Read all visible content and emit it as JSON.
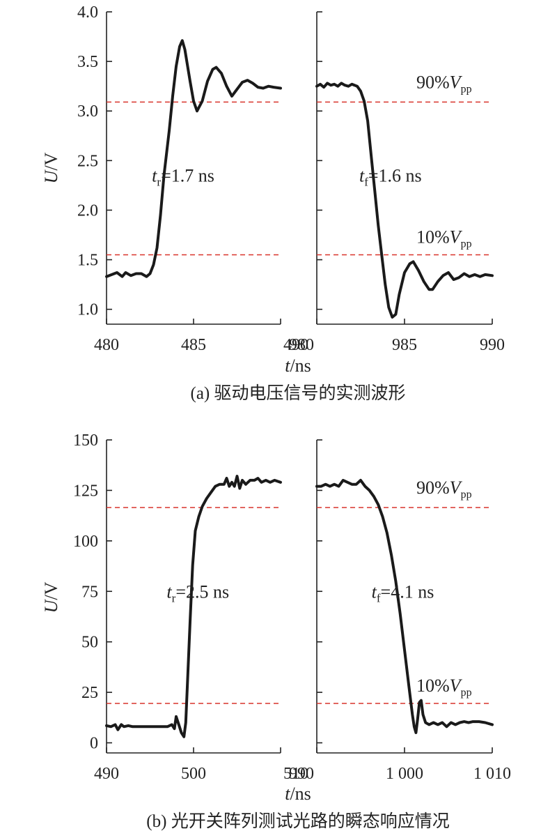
{
  "chart_data": [
    {
      "type": "line",
      "caption": "(a) 驱动电压信号的实测波形",
      "ylabel_italic": "U",
      "ylabel_unit": "/V",
      "xlabel_italic": "t",
      "xlabel_unit": "/ns",
      "ylim": [
        0.85,
        4.0
      ],
      "yticks": [
        "1.0",
        "1.5",
        "2.0",
        "2.5",
        "3.0",
        "3.5",
        "4.0"
      ],
      "ytick_values": [
        1.0,
        1.5,
        2.0,
        2.5,
        3.0,
        3.5,
        4.0
      ],
      "ref_lines": [
        {
          "value": 3.09,
          "label_pre": "90%",
          "label_V": "V",
          "label_sub": "pp"
        },
        {
          "value": 1.55,
          "label_pre": "10%",
          "label_V": "V",
          "label_sub": "pp"
        }
      ],
      "panels": [
        {
          "xlim": [
            480,
            490
          ],
          "xticks": [
            "480",
            "485",
            "490"
          ],
          "xtick_values": [
            480,
            485,
            490
          ],
          "annotation": {
            "sym": "t",
            "sub": "r",
            "text": "=1.7 ns",
            "x": 484.4,
            "y": 2.35
          },
          "points": [
            [
              480.0,
              1.33
            ],
            [
              480.3,
              1.35
            ],
            [
              480.6,
              1.37
            ],
            [
              480.9,
              1.33
            ],
            [
              481.1,
              1.37
            ],
            [
              481.4,
              1.34
            ],
            [
              481.7,
              1.36
            ],
            [
              482.0,
              1.36
            ],
            [
              482.3,
              1.33
            ],
            [
              482.5,
              1.36
            ],
            [
              482.7,
              1.45
            ],
            [
              482.9,
              1.62
            ],
            [
              483.1,
              1.95
            ],
            [
              483.3,
              2.35
            ],
            [
              483.6,
              2.8
            ],
            [
              483.8,
              3.15
            ],
            [
              484.0,
              3.45
            ],
            [
              484.2,
              3.65
            ],
            [
              484.35,
              3.71
            ],
            [
              484.5,
              3.62
            ],
            [
              484.8,
              3.3
            ],
            [
              485.0,
              3.1
            ],
            [
              485.2,
              3.0
            ],
            [
              485.5,
              3.1
            ],
            [
              485.8,
              3.3
            ],
            [
              486.1,
              3.42
            ],
            [
              486.3,
              3.44
            ],
            [
              486.6,
              3.38
            ],
            [
              486.9,
              3.25
            ],
            [
              487.2,
              3.15
            ],
            [
              487.5,
              3.22
            ],
            [
              487.8,
              3.29
            ],
            [
              488.1,
              3.31
            ],
            [
              488.4,
              3.28
            ],
            [
              488.7,
              3.24
            ],
            [
              489.0,
              3.23
            ],
            [
              489.3,
              3.25
            ],
            [
              489.6,
              3.24
            ],
            [
              490.0,
              3.23
            ]
          ]
        },
        {
          "xlim": [
            980,
            990
          ],
          "xticks": [
            "980",
            "985",
            "990"
          ],
          "xtick_values": [
            980,
            985,
            990
          ],
          "annotation": {
            "sym": "t",
            "sub": "f",
            "text": "=1.6 ns",
            "x": 984.2,
            "y": 2.35
          },
          "points": [
            [
              980.0,
              3.25
            ],
            [
              980.2,
              3.27
            ],
            [
              980.4,
              3.24
            ],
            [
              980.6,
              3.28
            ],
            [
              980.8,
              3.26
            ],
            [
              981.0,
              3.27
            ],
            [
              981.2,
              3.25
            ],
            [
              981.4,
              3.28
            ],
            [
              981.6,
              3.26
            ],
            [
              981.8,
              3.25
            ],
            [
              982.0,
              3.27
            ],
            [
              982.3,
              3.25
            ],
            [
              982.5,
              3.2
            ],
            [
              982.7,
              3.1
            ],
            [
              982.9,
              2.9
            ],
            [
              983.1,
              2.55
            ],
            [
              983.3,
              2.2
            ],
            [
              983.5,
              1.85
            ],
            [
              983.7,
              1.55
            ],
            [
              983.9,
              1.25
            ],
            [
              984.1,
              1.02
            ],
            [
              984.3,
              0.92
            ],
            [
              984.5,
              0.95
            ],
            [
              984.7,
              1.15
            ],
            [
              985.0,
              1.37
            ],
            [
              985.3,
              1.46
            ],
            [
              985.5,
              1.48
            ],
            [
              985.8,
              1.39
            ],
            [
              986.1,
              1.28
            ],
            [
              986.4,
              1.2
            ],
            [
              986.6,
              1.2
            ],
            [
              986.9,
              1.28
            ],
            [
              987.2,
              1.34
            ],
            [
              987.5,
              1.37
            ],
            [
              987.8,
              1.3
            ],
            [
              988.1,
              1.32
            ],
            [
              988.4,
              1.36
            ],
            [
              988.7,
              1.33
            ],
            [
              989.0,
              1.35
            ],
            [
              989.3,
              1.33
            ],
            [
              989.6,
              1.35
            ],
            [
              990.0,
              1.34
            ]
          ]
        }
      ]
    },
    {
      "type": "line",
      "caption": "(b) 光开关阵列测试光路的瞬态响应情况",
      "ylabel_italic": "U",
      "ylabel_unit": "/V",
      "xlabel_italic": "t",
      "xlabel_unit": "/ns",
      "ylim": [
        -5,
        150
      ],
      "yticks": [
        "0",
        "25",
        "50",
        "75",
        "100",
        "125",
        "150"
      ],
      "ytick_values": [
        0,
        25,
        50,
        75,
        100,
        125,
        150
      ],
      "ref_lines": [
        {
          "value": 116.5,
          "label_pre": "90%",
          "label_V": "V",
          "label_sub": "pp"
        },
        {
          "value": 19.5,
          "label_pre": "10%",
          "label_V": "V",
          "label_sub": "pp"
        }
      ],
      "panels": [
        {
          "xlim": [
            490,
            510
          ],
          "xticks": [
            "490",
            "500",
            "510"
          ],
          "xtick_values": [
            490,
            500,
            510
          ],
          "annotation": {
            "sym": "t",
            "sub": "r",
            "text": "=2.5 ns",
            "x": 500.5,
            "y": 75
          },
          "points": [
            [
              490.0,
              8.5
            ],
            [
              490.5,
              8.0
            ],
            [
              491.0,
              9.0
            ],
            [
              491.3,
              6.5
            ],
            [
              491.7,
              9.0
            ],
            [
              492.0,
              8.0
            ],
            [
              492.5,
              8.5
            ],
            [
              493.0,
              8.0
            ],
            [
              494.0,
              8.0
            ],
            [
              495.0,
              8.0
            ],
            [
              496.0,
              8.0
            ],
            [
              497.0,
              8.0
            ],
            [
              497.5,
              9.0
            ],
            [
              497.8,
              7.0
            ],
            [
              498.0,
              13.0
            ],
            [
              498.3,
              9.0
            ],
            [
              498.6,
              5.0
            ],
            [
              498.9,
              3.0
            ],
            [
              499.1,
              10.0
            ],
            [
              499.3,
              30.0
            ],
            [
              499.6,
              60.0
            ],
            [
              499.9,
              88.0
            ],
            [
              500.2,
              105.0
            ],
            [
              500.6,
              112.0
            ],
            [
              501.0,
              117.0
            ],
            [
              501.5,
              121.0
            ],
            [
              502.0,
              124.0
            ],
            [
              502.5,
              127.0
            ],
            [
              503.0,
              128.0
            ],
            [
              503.5,
              128.0
            ],
            [
              503.8,
              131.0
            ],
            [
              504.1,
              127.0
            ],
            [
              504.4,
              129.0
            ],
            [
              504.7,
              127.0
            ],
            [
              505.0,
              132.0
            ],
            [
              505.3,
              126.0
            ],
            [
              505.6,
              130.0
            ],
            [
              506.0,
              128.0
            ],
            [
              506.5,
              130.0
            ],
            [
              507.0,
              130.0
            ],
            [
              507.4,
              131.0
            ],
            [
              507.8,
              129.0
            ],
            [
              508.3,
              130.0
            ],
            [
              508.8,
              129.0
            ],
            [
              509.3,
              130.0
            ],
            [
              510.0,
              129.0
            ]
          ]
        },
        {
          "xlim": [
            990,
            1010
          ],
          "xticks": [
            "990",
            "1 000",
            "1 010"
          ],
          "xtick_values": [
            990,
            1000,
            1010
          ],
          "annotation": {
            "sym": "t",
            "sub": "f",
            "text": "=4.1 ns",
            "x": 999.8,
            "y": 75
          },
          "points": [
            [
              990.0,
              127.0
            ],
            [
              990.5,
              127.0
            ],
            [
              991.0,
              128.0
            ],
            [
              991.5,
              127.0
            ],
            [
              992.0,
              128.0
            ],
            [
              992.5,
              127.0
            ],
            [
              993.0,
              130.0
            ],
            [
              993.5,
              129.0
            ],
            [
              994.0,
              128.0
            ],
            [
              994.5,
              128.0
            ],
            [
              995.0,
              130.0
            ],
            [
              995.5,
              127.0
            ],
            [
              996.0,
              125.0
            ],
            [
              996.5,
              122.0
            ],
            [
              997.0,
              118.0
            ],
            [
              997.5,
              112.0
            ],
            [
              998.0,
              104.0
            ],
            [
              998.5,
              93.0
            ],
            [
              999.0,
              80.0
            ],
            [
              999.5,
              64.0
            ],
            [
              1000.0,
              46.0
            ],
            [
              1000.5,
              28.0
            ],
            [
              1000.9,
              14.0
            ],
            [
              1001.1,
              8.0
            ],
            [
              1001.3,
              5.0
            ],
            [
              1001.5,
              12.0
            ],
            [
              1001.7,
              20.0
            ],
            [
              1001.9,
              21.0
            ],
            [
              1002.1,
              14.0
            ],
            [
              1002.4,
              10.0
            ],
            [
              1002.8,
              9.0
            ],
            [
              1003.3,
              10.0
            ],
            [
              1003.8,
              9.0
            ],
            [
              1004.3,
              10.0
            ],
            [
              1004.8,
              8.0
            ],
            [
              1005.3,
              10.0
            ],
            [
              1005.8,
              9.0
            ],
            [
              1006.3,
              10.0
            ],
            [
              1006.8,
              10.5
            ],
            [
              1007.3,
              10.0
            ],
            [
              1007.8,
              10.5
            ],
            [
              1008.5,
              10.5
            ],
            [
              1009.2,
              10.0
            ],
            [
              1010.0,
              9.0
            ]
          ]
        }
      ]
    }
  ]
}
